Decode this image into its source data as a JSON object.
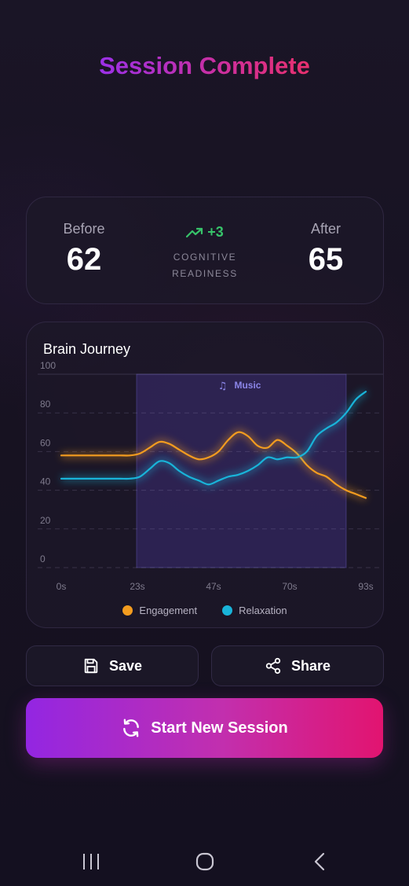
{
  "header": {
    "title": "Session Complete"
  },
  "stats": {
    "before_label": "Before",
    "before_value": "62",
    "after_label": "After",
    "after_value": "65",
    "delta": "+3",
    "caption_line1": "COGNITIVE",
    "caption_line2": "READINESS",
    "delta_icon": "trending-up-icon",
    "delta_color": "#37c36a"
  },
  "chart_data": {
    "type": "line",
    "title": "Brain Journey",
    "x": [
      0,
      3,
      6,
      9,
      12,
      15,
      18,
      21,
      24,
      27,
      30,
      33,
      36,
      39,
      42,
      45,
      48,
      51,
      54,
      57,
      60,
      63,
      66,
      69,
      72,
      75,
      78,
      81,
      84,
      87,
      90,
      93
    ],
    "series": [
      {
        "name": "Engagement",
        "color": "#f39c1f",
        "values": [
          58,
          58,
          58,
          58,
          58,
          58,
          58,
          58,
          59,
          62,
          65,
          64,
          61,
          58,
          56,
          57,
          60,
          66,
          70,
          68,
          63,
          62,
          66,
          63,
          59,
          53,
          49,
          47,
          43,
          40,
          38,
          36
        ]
      },
      {
        "name": "Relaxation",
        "color": "#19b4d9",
        "values": [
          46,
          46,
          46,
          46,
          46,
          46,
          46,
          46,
          47,
          51,
          55,
          54,
          50,
          47,
          45,
          43,
          45,
          47,
          48,
          50,
          53,
          57,
          56,
          57,
          57,
          60,
          68,
          72,
          75,
          80,
          87,
          91
        ]
      }
    ],
    "xticks": [
      "0s",
      "23s",
      "47s",
      "70s",
      "93s"
    ],
    "yticks": [
      "0",
      "20",
      "40",
      "60",
      "80",
      "100"
    ],
    "xlim": [
      0,
      93
    ],
    "ylim": [
      0,
      100
    ],
    "highlight": {
      "label": "Music",
      "icon": "music-note-icon",
      "start": 23,
      "end": 87
    },
    "grid": true,
    "legend_placement": "bottom"
  },
  "actions": {
    "save_label": "Save",
    "share_label": "Share",
    "start_label": "Start New Session"
  },
  "icons": {
    "save": "save-icon",
    "share": "share-icon",
    "start": "refresh-icon",
    "nav_recents": "recents-icon",
    "nav_home": "home-icon",
    "nav_back": "back-icon"
  }
}
